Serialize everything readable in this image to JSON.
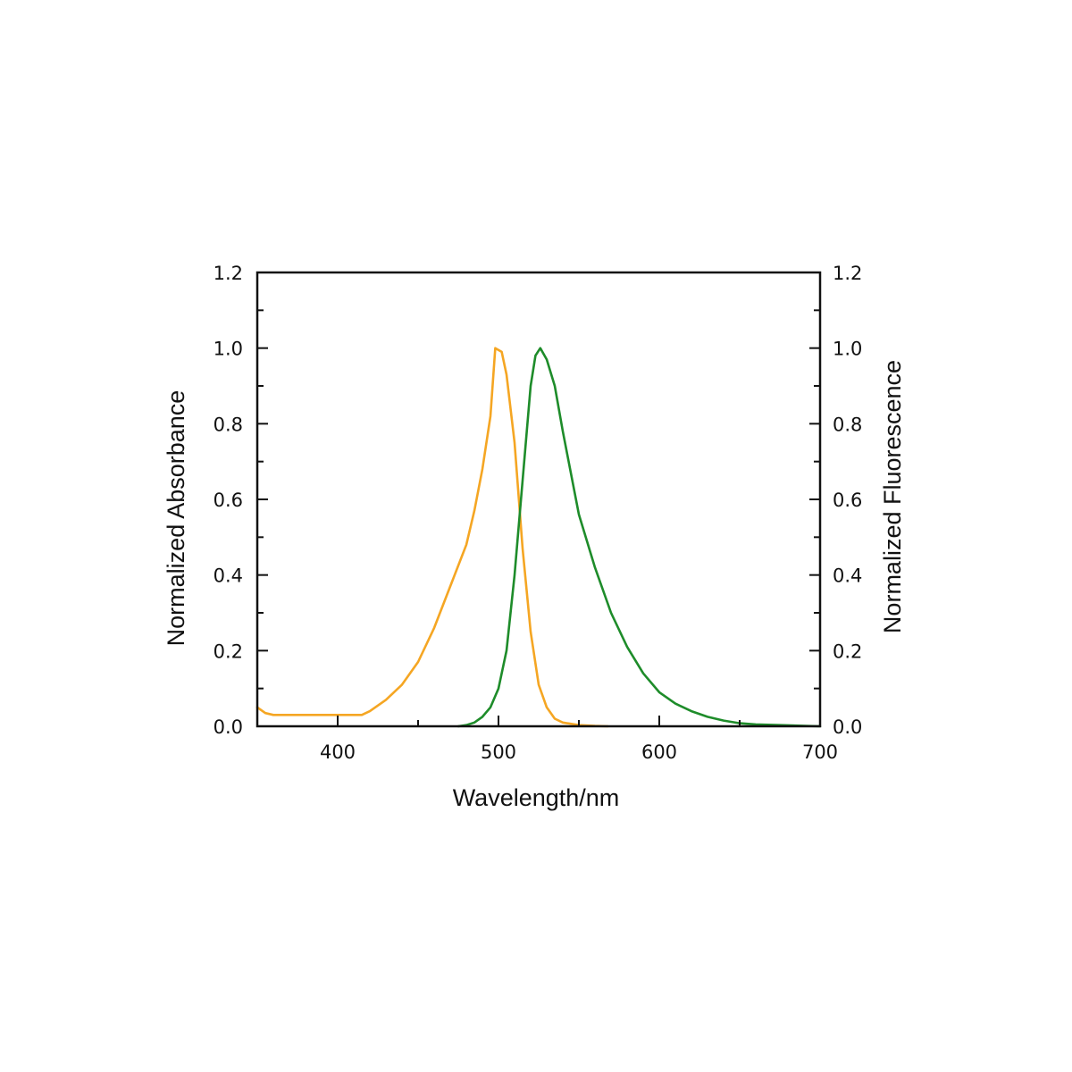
{
  "chart_data": {
    "type": "line",
    "xlabel": "Wavelength/nm",
    "ylabel_left": "Normalized Absorbance",
    "ylabel_right": "Normalized Fluorescence",
    "xlim": [
      350,
      700
    ],
    "ylim": [
      0,
      1.2
    ],
    "x_ticks": [
      400,
      500,
      600,
      700
    ],
    "x_tick_labels": [
      "400",
      "500",
      "600",
      "700"
    ],
    "y_ticks": [
      0,
      0.2,
      0.4,
      0.6,
      0.8,
      1.0,
      1.2
    ],
    "y_tick_labels": [
      "0.0",
      "0.2",
      "0.4",
      "0.6",
      "0.8",
      "1.0",
      "1.2"
    ],
    "grid": false,
    "legend": "none",
    "series": [
      {
        "color": "#f5a623",
        "axis": "left",
        "x": [
          350,
          355,
          360,
          380,
          400,
          415,
          420,
          430,
          440,
          450,
          460,
          470,
          480,
          485,
          490,
          495,
          498,
          502,
          505,
          510,
          515,
          520,
          525,
          530,
          535,
          540,
          550,
          560,
          568
        ],
        "y": [
          0.05,
          0.035,
          0.03,
          0.03,
          0.03,
          0.03,
          0.04,
          0.07,
          0.11,
          0.17,
          0.26,
          0.37,
          0.48,
          0.57,
          0.68,
          0.82,
          1.0,
          0.99,
          0.93,
          0.75,
          0.47,
          0.25,
          0.11,
          0.05,
          0.02,
          0.01,
          0.003,
          0.001,
          0.0
        ]
      },
      {
        "color": "#1e8c2a",
        "axis": "right",
        "x": [
          475,
          480,
          485,
          490,
          495,
          500,
          505,
          510,
          515,
          520,
          523,
          526,
          530,
          535,
          540,
          550,
          560,
          570,
          580,
          590,
          600,
          610,
          620,
          630,
          640,
          650,
          660,
          675,
          700
        ],
        "y": [
          0.0,
          0.003,
          0.01,
          0.025,
          0.05,
          0.1,
          0.2,
          0.4,
          0.65,
          0.9,
          0.98,
          1.0,
          0.97,
          0.9,
          0.78,
          0.56,
          0.42,
          0.3,
          0.21,
          0.14,
          0.09,
          0.06,
          0.04,
          0.025,
          0.015,
          0.008,
          0.005,
          0.003,
          0.0
        ]
      }
    ]
  }
}
